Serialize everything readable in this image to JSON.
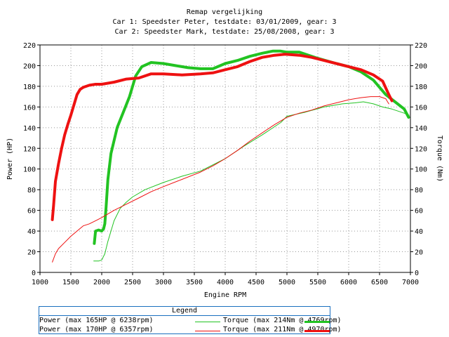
{
  "titles": [
    "Remap vergelijking",
    "Car 1: Speedster Peter, testdate: 03/01/2009, gear: 3",
    "Car 2: Speedster Mark, testdate: 25/08/2008, gear: 3"
  ],
  "colors": {
    "car1": "#22c322",
    "car2": "#ee1111",
    "legend_border": "#1a6fbf",
    "grid": "#999999"
  },
  "chart_data": {
    "type": "line",
    "title": "Remap vergelijking",
    "xlabel": "Engine RPM",
    "ylabel": "Power (HP)",
    "ylabel_right": "Torque (Nm)",
    "xlim": [
      1000,
      7000
    ],
    "ylim": [
      0,
      220
    ],
    "ylim_right": [
      0,
      220
    ],
    "x_ticks": [
      1000,
      1500,
      2000,
      2500,
      3000,
      3500,
      4000,
      4500,
      5000,
      5500,
      6000,
      6500,
      7000
    ],
    "y_ticks": [
      0,
      20,
      40,
      60,
      80,
      100,
      120,
      140,
      160,
      180,
      200,
      220
    ],
    "grid": true,
    "legend_title": "Legend",
    "legend_position": "bottom",
    "series": [
      {
        "name": "Power (max 165HP @ 6238rpm)",
        "car": "car1",
        "kind": "power",
        "line": "thin",
        "points": [
          [
            1870,
            11
          ],
          [
            1950,
            11
          ],
          [
            2000,
            12
          ],
          [
            2050,
            18
          ],
          [
            2100,
            30
          ],
          [
            2200,
            50
          ],
          [
            2300,
            62
          ],
          [
            2400,
            68
          ],
          [
            2500,
            73
          ],
          [
            2700,
            80
          ],
          [
            3000,
            87
          ],
          [
            3300,
            93
          ],
          [
            3600,
            98
          ],
          [
            4000,
            110
          ],
          [
            4300,
            122
          ],
          [
            4600,
            133
          ],
          [
            4900,
            145
          ],
          [
            5000,
            151
          ],
          [
            5300,
            155
          ],
          [
            5600,
            160
          ],
          [
            5900,
            163
          ],
          [
            6100,
            164
          ],
          [
            6238,
            165
          ],
          [
            6400,
            163
          ],
          [
            6550,
            160
          ],
          [
            6700,
            158
          ],
          [
            6900,
            154
          ],
          [
            6980,
            152
          ]
        ]
      },
      {
        "name": "Torque (max 214Nm @ 4769rpm)",
        "car": "car1",
        "kind": "torque",
        "line": "thick",
        "points": [
          [
            1880,
            28
          ],
          [
            1900,
            40
          ],
          [
            1950,
            41
          ],
          [
            2000,
            40
          ],
          [
            2030,
            42
          ],
          [
            2050,
            47
          ],
          [
            2070,
            63
          ],
          [
            2100,
            90
          ],
          [
            2150,
            115
          ],
          [
            2250,
            140
          ],
          [
            2350,
            155
          ],
          [
            2450,
            170
          ],
          [
            2550,
            190
          ],
          [
            2650,
            199
          ],
          [
            2800,
            203
          ],
          [
            3000,
            202
          ],
          [
            3200,
            200
          ],
          [
            3400,
            198
          ],
          [
            3600,
            197
          ],
          [
            3800,
            197
          ],
          [
            4000,
            202
          ],
          [
            4200,
            205
          ],
          [
            4400,
            209
          ],
          [
            4600,
            212
          ],
          [
            4769,
            214
          ],
          [
            4900,
            214
          ],
          [
            5000,
            213
          ],
          [
            5200,
            213
          ],
          [
            5500,
            207
          ],
          [
            5800,
            202
          ],
          [
            6000,
            199
          ],
          [
            6200,
            194
          ],
          [
            6400,
            186
          ],
          [
            6600,
            172
          ],
          [
            6750,
            165
          ],
          [
            6900,
            158
          ],
          [
            6970,
            150
          ]
        ]
      },
      {
        "name": "Power (max 170HP @ 6357rpm)",
        "car": "car2",
        "kind": "power",
        "line": "thin",
        "points": [
          [
            1200,
            10
          ],
          [
            1250,
            18
          ],
          [
            1300,
            23
          ],
          [
            1400,
            29
          ],
          [
            1500,
            35
          ],
          [
            1600,
            40
          ],
          [
            1700,
            45
          ],
          [
            1800,
            47
          ],
          [
            1900,
            50
          ],
          [
            2000,
            53
          ],
          [
            2200,
            60
          ],
          [
            2400,
            66
          ],
          [
            2600,
            72
          ],
          [
            2800,
            78
          ],
          [
            3000,
            83
          ],
          [
            3300,
            90
          ],
          [
            3600,
            97
          ],
          [
            3800,
            103
          ],
          [
            4000,
            110
          ],
          [
            4200,
            118
          ],
          [
            4400,
            127
          ],
          [
            4600,
            135
          ],
          [
            4800,
            143
          ],
          [
            5000,
            150
          ],
          [
            5200,
            154
          ],
          [
            5400,
            157
          ],
          [
            5600,
            161
          ],
          [
            5800,
            164
          ],
          [
            6000,
            167
          ],
          [
            6200,
            169
          ],
          [
            6357,
            170
          ],
          [
            6500,
            170
          ],
          [
            6600,
            168
          ],
          [
            6650,
            163
          ]
        ]
      },
      {
        "name": "Torque (max 211Nm @ 4970rpm)",
        "car": "car2",
        "kind": "torque",
        "line": "thick",
        "points": [
          [
            1200,
            51
          ],
          [
            1220,
            65
          ],
          [
            1250,
            88
          ],
          [
            1300,
            105
          ],
          [
            1350,
            120
          ],
          [
            1400,
            133
          ],
          [
            1450,
            143
          ],
          [
            1500,
            152
          ],
          [
            1550,
            162
          ],
          [
            1600,
            172
          ],
          [
            1650,
            177
          ],
          [
            1700,
            179
          ],
          [
            1800,
            181
          ],
          [
            1900,
            182
          ],
          [
            2000,
            182
          ],
          [
            2200,
            184
          ],
          [
            2400,
            187
          ],
          [
            2600,
            188
          ],
          [
            2800,
            192
          ],
          [
            3000,
            192
          ],
          [
            3300,
            191
          ],
          [
            3600,
            192
          ],
          [
            3800,
            193
          ],
          [
            4000,
            196
          ],
          [
            4200,
            199
          ],
          [
            4400,
            204
          ],
          [
            4600,
            208
          ],
          [
            4800,
            210
          ],
          [
            4970,
            211
          ],
          [
            5200,
            210
          ],
          [
            5400,
            208
          ],
          [
            5600,
            205
          ],
          [
            5800,
            202
          ],
          [
            6000,
            199
          ],
          [
            6200,
            196
          ],
          [
            6400,
            191
          ],
          [
            6550,
            185
          ],
          [
            6650,
            172
          ],
          [
            6700,
            166
          ]
        ]
      }
    ]
  }
}
